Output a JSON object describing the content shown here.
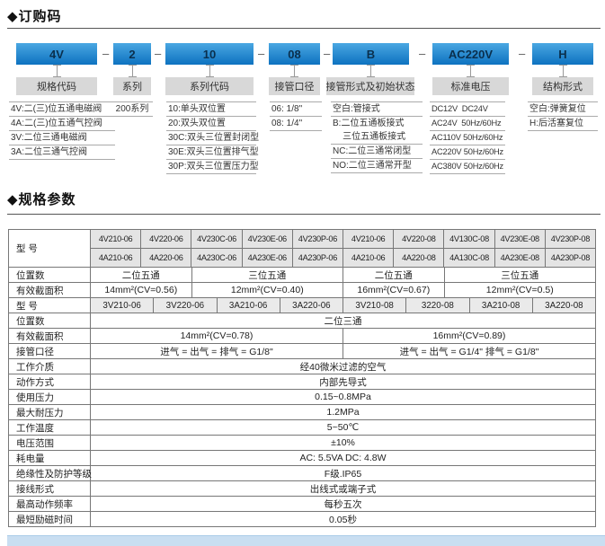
{
  "order_code": {
    "title": "◆订购码",
    "separator": "–",
    "segments": [
      {
        "code": "4V",
        "label": "规格代码",
        "options": [
          "4V:二(三)位五通电磁阀",
          "4A:二(三)位五通气控阀",
          "3V:二位三通电磁阀",
          "3A:二位三通气控阀"
        ]
      },
      {
        "code": "2",
        "label": "系列",
        "options": [
          "200系列"
        ]
      },
      {
        "code": "10",
        "label": "系列代码",
        "options": [
          "10:单头双位置",
          "20:双头双位置",
          "30C:双头三位置封闭型",
          "30E:双头三位置排气型",
          "30P:双头三位置压力型"
        ]
      },
      {
        "code": "08",
        "label": "接管口径",
        "options": [
          "06: 1/8\"",
          "08: 1/4\""
        ]
      },
      {
        "code": "B",
        "label": "接管形式及初始状态",
        "options": [
          "空白:管接式",
          "B:二位五通板接式",
          "    三位五通板接式",
          "NC:二位三通常闭型",
          "NO:二位三通常开型"
        ]
      },
      {
        "code": "AC220V",
        "label": "标准电压",
        "options": [
          "DC12V  DC24V",
          "AC24V  50Hz/60Hz",
          "AC110V 50Hz/60Hz",
          "AC220V 50Hz/60Hz",
          "AC380V 50Hz/60Hz"
        ]
      },
      {
        "code": "H",
        "label": "结构形式",
        "options": [
          "空白:弹簧复位",
          "H:后活塞复位"
        ]
      }
    ]
  },
  "specs": {
    "title": "◆规格参数",
    "table1": {
      "label_model": "型  号",
      "models_v": [
        "4V210-06",
        "4V220-06",
        "4V230C-06",
        "4V230E-06",
        "4V230P-06",
        "4V210-06",
        "4V220-08",
        "4V130C-08",
        "4V230E-08",
        "4V230P-08"
      ],
      "models_a": [
        "4A210-06",
        "4A220-06",
        "4A230C-06",
        "4A230E-06",
        "4A230P-06",
        "4A210-06",
        "4A220-08",
        "4A130C-08",
        "4A230E-08",
        "4A230P-08"
      ],
      "label_positions": "位置数",
      "positions": [
        "二位五通",
        "三位五通",
        "二位五通",
        "三位五通"
      ],
      "label_area": "有效截面积",
      "areas": [
        "14mm²(CV=0.56)",
        "12mm²(CV=0.40)",
        "16mm²(CV=0.67)",
        "12mm²(CV=0.5)"
      ]
    },
    "table2": {
      "label_model": "型  号",
      "models": [
        "3V210-06",
        "3V220-06",
        "3A210-06",
        "3A220-06",
        "3V210-08",
        "3220-08",
        "3A210-08",
        "3A220-08"
      ],
      "label_positions": "位置数",
      "positions": "二位三通",
      "label_area": "有效截面积",
      "areas": [
        "14mm²(CV=0.78)",
        "16mm²(CV=0.89)"
      ],
      "label_port": "接管口径",
      "ports": [
        "进气 = 出气 = 排气 = G1/8\"",
        "进气 = 出气 = G1/4\"  排气 = G1/8\""
      ]
    },
    "rows": [
      {
        "label": "工作介质",
        "value": "经40微米过滤的空气"
      },
      {
        "label": "动作方式",
        "value": "内部先导式"
      },
      {
        "label": "使用压力",
        "value": "0.15~0.8MPa"
      },
      {
        "label": "最大耐压力",
        "value": "1.2MPa"
      },
      {
        "label": "工作温度",
        "value": "5~50℃"
      },
      {
        "label": "电压范围",
        "value": "±10%"
      },
      {
        "label": "耗电量",
        "value": "AC: 5.5VA    DC: 4.8W"
      },
      {
        "label": "绝缘性及防护等级",
        "value": "F级.IP65"
      },
      {
        "label": "接线形式",
        "value": "出线式或端子式"
      },
      {
        "label": "最高动作频率",
        "value": "每秒五次"
      },
      {
        "label": "最短励磁时间",
        "value": "0.05秒"
      }
    ]
  }
}
